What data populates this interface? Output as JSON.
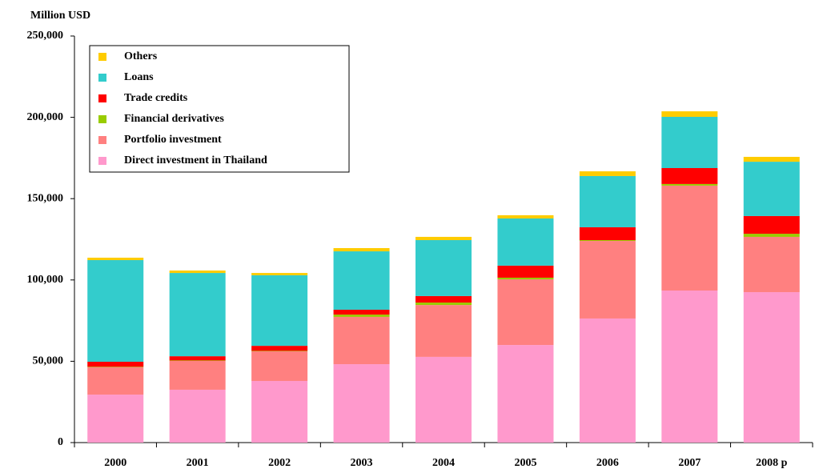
{
  "chart_data": {
    "type": "bar",
    "stacked": true,
    "ylabel": "Million USD",
    "categories": [
      "2000",
      "2001",
      "2002",
      "2003",
      "2004",
      "2005",
      "2006",
      "2007",
      "2008 p"
    ],
    "series": [
      {
        "name": "Direct investment in Thailand",
        "color": "#ff99cc",
        "values": [
          29500,
          32500,
          37900,
          48200,
          52700,
          60000,
          76300,
          93500,
          92500
        ]
      },
      {
        "name": "Portfolio investment",
        "color": "#ff8080",
        "values": [
          16800,
          17700,
          18200,
          29100,
          31900,
          40400,
          47700,
          64500,
          34000
        ]
      },
      {
        "name": "Financial derivatives",
        "color": "#99cc00",
        "values": [
          300,
          300,
          300,
          1400,
          1500,
          1000,
          500,
          1000,
          1900
        ]
      },
      {
        "name": "Trade credits",
        "color": "#ff0000",
        "values": [
          3100,
          2600,
          3100,
          3000,
          4000,
          7400,
          7900,
          9800,
          10900
        ]
      },
      {
        "name": "Loans",
        "color": "#33cccc",
        "values": [
          62500,
          51200,
          43400,
          35900,
          34400,
          29000,
          31500,
          31500,
          33400
        ]
      },
      {
        "name": "Others",
        "color": "#ffcc00",
        "values": [
          1500,
          1500,
          1400,
          2000,
          2000,
          2000,
          2900,
          3400,
          3000
        ]
      }
    ],
    "ylim": [
      0,
      250000
    ],
    "yticks": [
      0,
      {
        "value": 50000,
        "label": "50,000"
      },
      {
        "value": 100000,
        "label": "100,000"
      },
      {
        "value": 150000,
        "label": "150,000"
      },
      {
        "value": 200000,
        "label": "200,000"
      },
      {
        "value": 250000,
        "label": "250,000"
      }
    ],
    "legend": "upper left"
  }
}
